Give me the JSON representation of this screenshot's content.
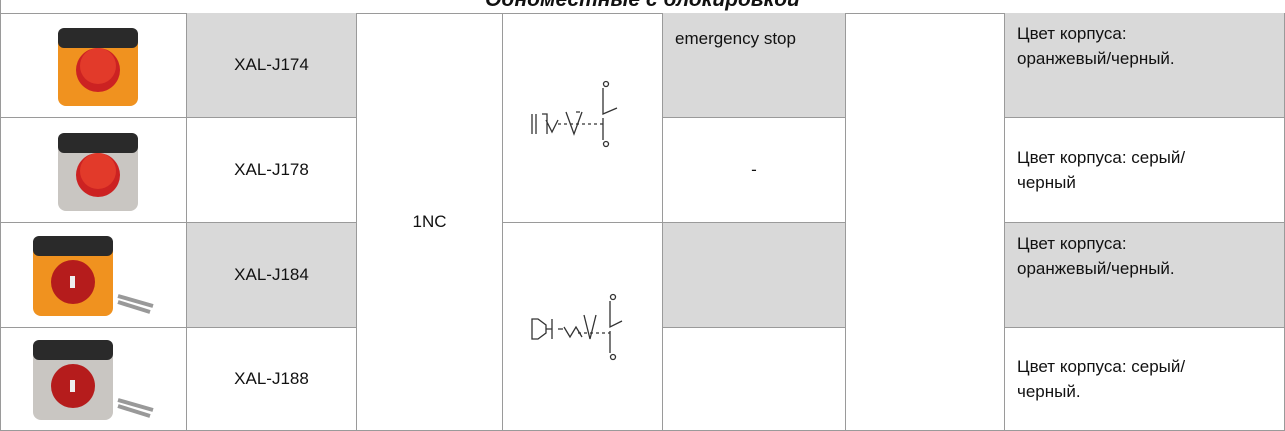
{
  "header": {
    "title": "Одноместные с блокировкой"
  },
  "table": {
    "contacts": "1NC",
    "rows": [
      {
        "model": "XAL-J174",
        "note": "emergency stop",
        "description": "Цвет корпуса: оранжевый/черный."
      },
      {
        "model": "XAL-J178",
        "note": "-",
        "description": "Цвет корпуса: серый/черный"
      },
      {
        "model": "XAL-J184",
        "description": "Цвет корпуса: оранжевый/черный."
      },
      {
        "model": "XAL-J188",
        "description": "Цвет корпуса: серый/черный."
      }
    ]
  }
}
